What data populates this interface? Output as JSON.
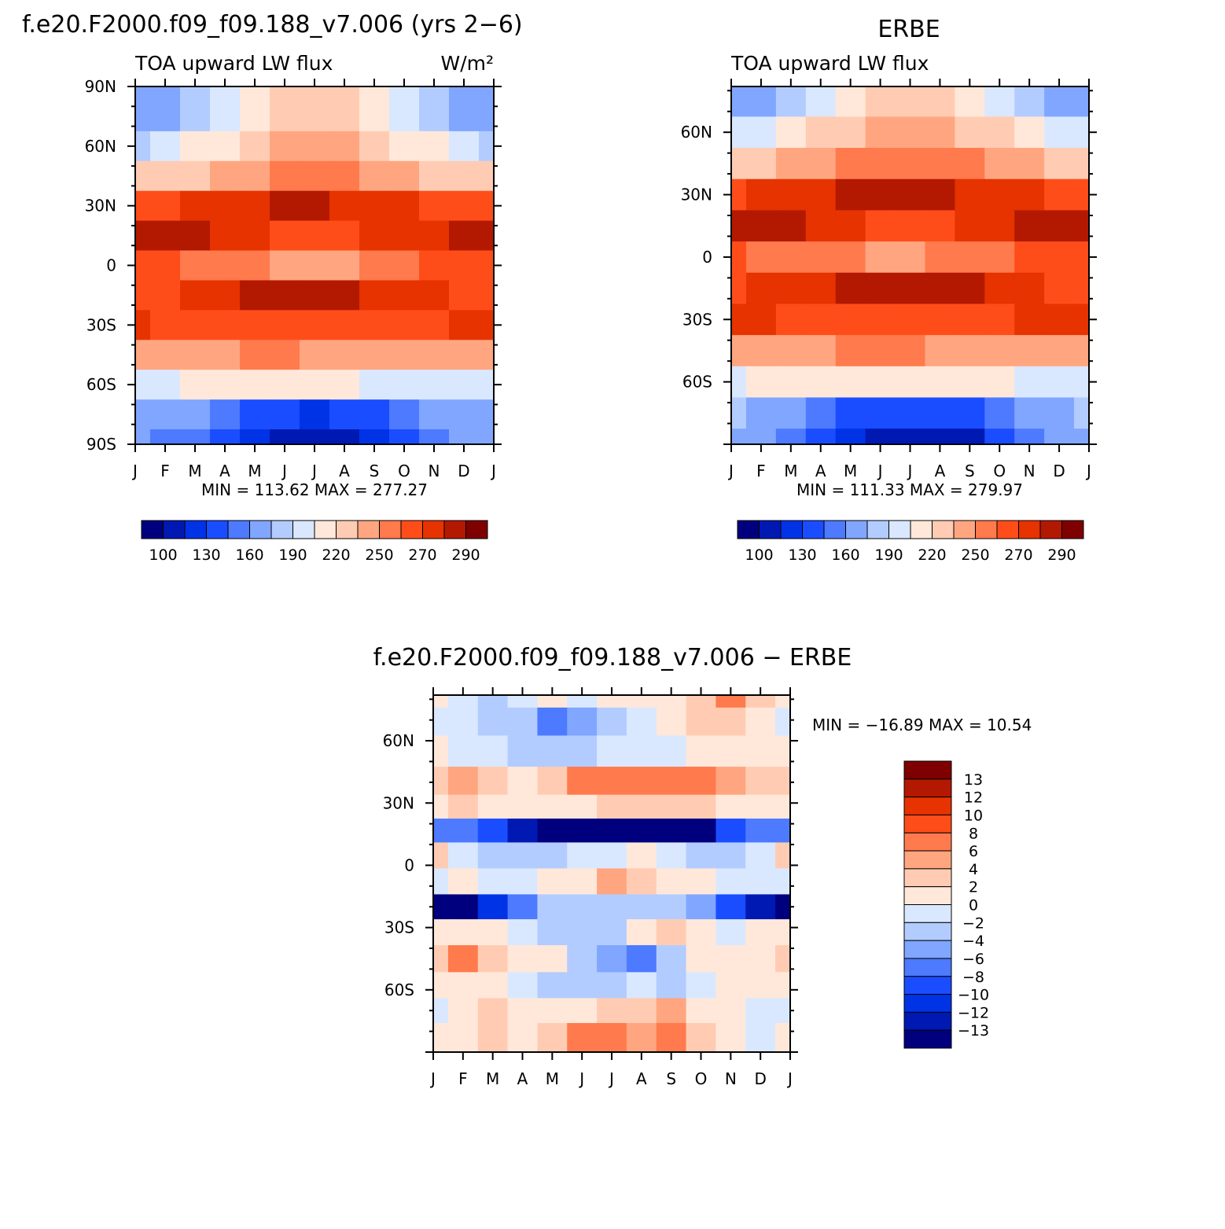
{
  "panels": [
    {
      "id": "model",
      "title": "f.e20.F2000.f09_f09.188_v7.006 (yrs 2−6)",
      "left_label": "TOA upward LW flux",
      "units_label": "W/m²",
      "ylabels": [
        "90N",
        "60N",
        "30N",
        "0",
        "30S",
        "60S",
        "90S"
      ],
      "xlabels": [
        "J",
        "F",
        "M",
        "A",
        "M",
        "J",
        "J",
        "A",
        "S",
        "O",
        "N",
        "D",
        "J"
      ],
      "stats": "MIN =  113.62  MAX =  277.27",
      "colorbar_labels": [
        "100",
        "130",
        "160",
        "190",
        "220",
        "250",
        "270",
        "290"
      ]
    },
    {
      "id": "obs",
      "title": "ERBE",
      "left_label": "TOA upward LW flux",
      "ylabels": [
        "60N",
        "30N",
        "0",
        "30S",
        "60S"
      ],
      "xlabels": [
        "J",
        "F",
        "M",
        "A",
        "M",
        "J",
        "J",
        "A",
        "S",
        "O",
        "N",
        "D",
        "J"
      ],
      "stats": "MIN =  111.33  MAX =  279.97",
      "colorbar_labels": [
        "100",
        "130",
        "160",
        "190",
        "220",
        "250",
        "270",
        "290"
      ]
    },
    {
      "id": "diff",
      "title": "f.e20.F2000.f09_f09.188_v7.006 − ERBE",
      "ylabels": [
        "60N",
        "30N",
        "0",
        "30S",
        "60S"
      ],
      "xlabels": [
        "J",
        "F",
        "M",
        "A",
        "M",
        "J",
        "J",
        "A",
        "S",
        "O",
        "N",
        "D",
        "J"
      ],
      "stats": "MIN = −16.89  MAX =   10.54",
      "colorbar_labels": [
        "13",
        "12",
        "10",
        "8",
        "6",
        "4",
        "2",
        "0",
        "−2",
        "−4",
        "−6",
        "−8",
        "−10",
        "−12",
        "−13"
      ]
    }
  ],
  "colors": {
    "flux_scale": [
      "#00007f",
      "#0019b3",
      "#0033e6",
      "#1a4dff",
      "#4d7aff",
      "#80a6ff",
      "#b3ccff",
      "#d9e8ff",
      "#ffe8d9",
      "#ffccb3",
      "#ffa680",
      "#ff7a4d",
      "#ff4d1a",
      "#e63300",
      "#b31900",
      "#7f0000"
    ],
    "diff_scale": [
      "#7f0000",
      "#b31900",
      "#e63300",
      "#ff4d1a",
      "#ff7a4d",
      "#ffa680",
      "#ffccb3",
      "#ffe8d9",
      "#d9e8ff",
      "#b3ccff",
      "#80a6ff",
      "#4d7aff",
      "#1a4dff",
      "#0033e6",
      "#0019b3",
      "#00007f"
    ]
  },
  "chart_data": [
    {
      "type": "heatmap",
      "title": "f.e20.F2000.f09_f09.188_v7.006 (yrs 2−6)",
      "variable": "TOA upward LW flux",
      "units": "W/m²",
      "x": [
        "J",
        "F",
        "M",
        "A",
        "M",
        "J",
        "J",
        "A",
        "S",
        "O",
        "N",
        "D",
        "J"
      ],
      "y": [
        75,
        60,
        45,
        30,
        15,
        0,
        -15,
        -30,
        -45,
        -60,
        -75,
        -90
      ],
      "z": [
        [
          160,
          168,
          178,
          192,
          205,
          212,
          214,
          212,
          205,
          192,
          178,
          165,
          160
        ],
        [
          182,
          188,
          196,
          206,
          214,
          220,
          222,
          220,
          214,
          206,
          196,
          188,
          182
        ],
        [
          210,
          212,
          216,
          222,
          228,
          234,
          236,
          234,
          228,
          222,
          216,
          212,
          210
        ],
        [
          250,
          252,
          256,
          262,
          266,
          268,
          268,
          266,
          262,
          258,
          254,
          250,
          250
        ],
        [
          270,
          272,
          268,
          262,
          256,
          250,
          248,
          250,
          256,
          262,
          266,
          268,
          270
        ],
        [
          245,
          244,
          240,
          236,
          232,
          228,
          228,
          230,
          236,
          240,
          244,
          246,
          245
        ],
        [
          250,
          254,
          258,
          262,
          268,
          272,
          272,
          270,
          266,
          262,
          256,
          252,
          250
        ],
        [
          256,
          254,
          252,
          250,
          250,
          250,
          250,
          250,
          250,
          252,
          254,
          256,
          256
        ],
        [
          220,
          224,
          228,
          230,
          232,
          232,
          230,
          228,
          226,
          224,
          222,
          220,
          220
        ],
        [
          190,
          192,
          196,
          198,
          200,
          200,
          198,
          196,
          194,
          194,
          192,
          190,
          190
        ],
        [
          170,
          166,
          160,
          150,
          142,
          136,
          134,
          136,
          142,
          152,
          160,
          168,
          170
        ],
        [
          165,
          158,
          150,
          140,
          130,
          118,
          114,
          116,
          124,
          140,
          152,
          162,
          165
        ]
      ],
      "zlim": [
        100,
        290
      ]
    },
    {
      "type": "heatmap",
      "title": "ERBE",
      "variable": "TOA upward LW flux",
      "x": [
        "J",
        "F",
        "M",
        "A",
        "M",
        "J",
        "J",
        "A",
        "S",
        "O",
        "N",
        "D",
        "J"
      ],
      "y": [
        75,
        60,
        45,
        30,
        15,
        0,
        -15,
        -30,
        -45,
        -60,
        -75,
        -90
      ],
      "z": [
        [
          162,
          170,
          180,
          194,
          206,
          212,
          214,
          212,
          206,
          194,
          180,
          168,
          162
        ],
        [
          184,
          190,
          198,
          208,
          216,
          222,
          224,
          222,
          216,
          208,
          198,
          190,
          184
        ],
        [
          214,
          216,
          220,
          226,
          232,
          238,
          240,
          238,
          232,
          226,
          220,
          216,
          214
        ],
        [
          254,
          256,
          260,
          264,
          268,
          270,
          270,
          268,
          264,
          260,
          256,
          254,
          254
        ],
        [
          272,
          274,
          270,
          264,
          258,
          252,
          250,
          252,
          258,
          264,
          268,
          270,
          272
        ],
        [
          244,
          242,
          238,
          236,
          232,
          230,
          230,
          232,
          236,
          240,
          244,
          246,
          244
        ],
        [
          252,
          256,
          260,
          264,
          270,
          274,
          274,
          272,
          268,
          264,
          258,
          254,
          252
        ],
        [
          258,
          256,
          254,
          252,
          252,
          252,
          252,
          252,
          252,
          254,
          256,
          258,
          258
        ],
        [
          224,
          226,
          228,
          230,
          232,
          232,
          232,
          230,
          228,
          226,
          224,
          224,
          224
        ],
        [
          194,
          196,
          198,
          200,
          202,
          202,
          200,
          198,
          196,
          196,
          194,
          194,
          194
        ],
        [
          172,
          168,
          162,
          152,
          144,
          138,
          136,
          138,
          144,
          154,
          162,
          170,
          172
        ],
        [
          168,
          160,
          152,
          142,
          130,
          118,
          112,
          114,
          122,
          140,
          154,
          164,
          168
        ]
      ],
      "zlim": [
        100,
        290
      ]
    },
    {
      "type": "heatmap",
      "title": "f.e20.F2000.f09_f09.188_v7.006 − ERBE",
      "x": [
        "J",
        "F",
        "M",
        "A",
        "M",
        "J",
        "J",
        "A",
        "S",
        "O",
        "N",
        "D",
        "J"
      ],
      "y": [
        82,
        70,
        55,
        40,
        28,
        17,
        5,
        -8,
        -20,
        -32,
        -45,
        -58,
        -70,
        -82
      ],
      "z": [
        [
          1,
          -1,
          -2,
          -1,
          1,
          -1,
          0,
          1,
          0,
          3,
          5,
          2,
          1
        ],
        [
          -1,
          -1,
          -2,
          -3,
          -5,
          -4,
          -2,
          -1,
          0,
          2,
          3,
          1,
          -1
        ],
        [
          0,
          -1,
          -1,
          -2,
          -3,
          -2,
          -1,
          -1,
          -1,
          0,
          1,
          0,
          0
        ],
        [
          3,
          4,
          2,
          1,
          3,
          5,
          6,
          6,
          5,
          6,
          4,
          2,
          3
        ],
        [
          1,
          2,
          1,
          0,
          1,
          1,
          2,
          3,
          3,
          2,
          1,
          1,
          1
        ],
        [
          -5,
          -6,
          -8,
          -11,
          -15,
          -14,
          -13,
          -14,
          -16,
          -12,
          -8,
          -5,
          -5
        ],
        [
          3,
          -1,
          -2,
          -3,
          -2,
          -1,
          -1,
          0,
          -1,
          -2,
          -2,
          -1,
          3
        ],
        [
          -1,
          0,
          -1,
          -1,
          0,
          1,
          4,
          2,
          0,
          0,
          -1,
          -1,
          -1
        ],
        [
          -14,
          -12,
          -9,
          -5,
          -3,
          -2,
          -2,
          -2,
          -2,
          -4,
          -8,
          -10,
          -14
        ],
        [
          1,
          1,
          0,
          -1,
          -2,
          -3,
          -2,
          0,
          2,
          0,
          -1,
          0,
          1
        ],
        [
          3,
          5,
          2,
          1,
          0,
          -3,
          -4,
          -5,
          -2,
          0,
          1,
          1,
          3
        ],
        [
          0,
          1,
          0,
          -1,
          -2,
          -3,
          -2,
          -1,
          -2,
          -1,
          0,
          0,
          0
        ],
        [
          -1,
          1,
          2,
          1,
          0,
          1,
          2,
          3,
          4,
          1,
          0,
          -1,
          -1
        ],
        [
          0,
          1,
          3,
          1,
          2,
          5,
          6,
          4,
          6,
          3,
          0,
          -1,
          0
        ]
      ],
      "zlim": [
        -13,
        13
      ]
    }
  ]
}
